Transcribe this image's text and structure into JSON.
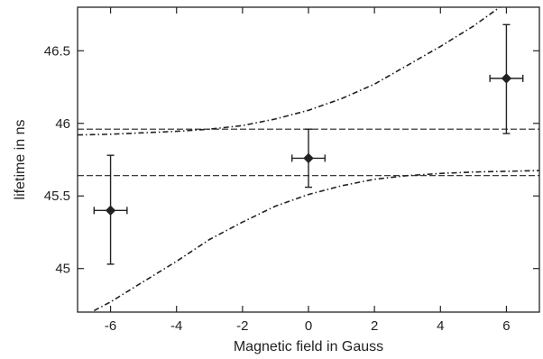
{
  "chart_data": {
    "type": "scatter",
    "title": "",
    "xlabel": "Magnetic field in Gauss",
    "ylabel": "lifetime in ns",
    "xlim": [
      -7,
      7
    ],
    "ylim": [
      44.7,
      46.8
    ],
    "x_ticks": [
      -6,
      -4,
      -2,
      0,
      2,
      4,
      6
    ],
    "x_tick_labels": [
      "-6",
      "-4",
      "-2",
      "0",
      "2",
      "4",
      "6"
    ],
    "y_ticks": [
      45,
      45.5,
      46,
      46.5
    ],
    "y_tick_labels": [
      "45",
      "45.5",
      "46",
      "46.5"
    ],
    "grid": false,
    "points": [
      {
        "x": -6,
        "y": 45.4,
        "xerr": 0.5,
        "yerr_low": 0.37,
        "yerr_high": 0.38
      },
      {
        "x": 0,
        "y": 45.76,
        "xerr": 0.5,
        "yerr_low": 0.2,
        "yerr_high": 0.2
      },
      {
        "x": 6,
        "y": 46.31,
        "xerr": 0.5,
        "yerr_low": 0.38,
        "yerr_high": 0.37
      }
    ],
    "horizontal_lines": [
      {
        "y": 45.96,
        "style": "dashed"
      },
      {
        "y": 45.64,
        "style": "dashed"
      }
    ],
    "curves": [
      {
        "style": "dash-dot",
        "x": [
          -7,
          -6,
          -5,
          -4,
          -3,
          -2,
          -1,
          0,
          1,
          2,
          3,
          4,
          5,
          5.8
        ],
        "y": [
          45.92,
          45.925,
          45.935,
          45.945,
          45.96,
          45.985,
          46.03,
          46.09,
          46.17,
          46.27,
          46.4,
          46.53,
          46.67,
          46.8
        ]
      },
      {
        "style": "dash-dot",
        "x": [
          -6.5,
          -6,
          -5,
          -4,
          -3,
          -2,
          -1,
          0,
          1,
          2,
          3,
          4,
          5,
          6,
          7
        ],
        "y": [
          44.71,
          44.77,
          44.91,
          45.05,
          45.2,
          45.32,
          45.43,
          45.51,
          45.57,
          45.615,
          45.64,
          45.655,
          45.665,
          45.67,
          45.675
        ]
      }
    ]
  }
}
